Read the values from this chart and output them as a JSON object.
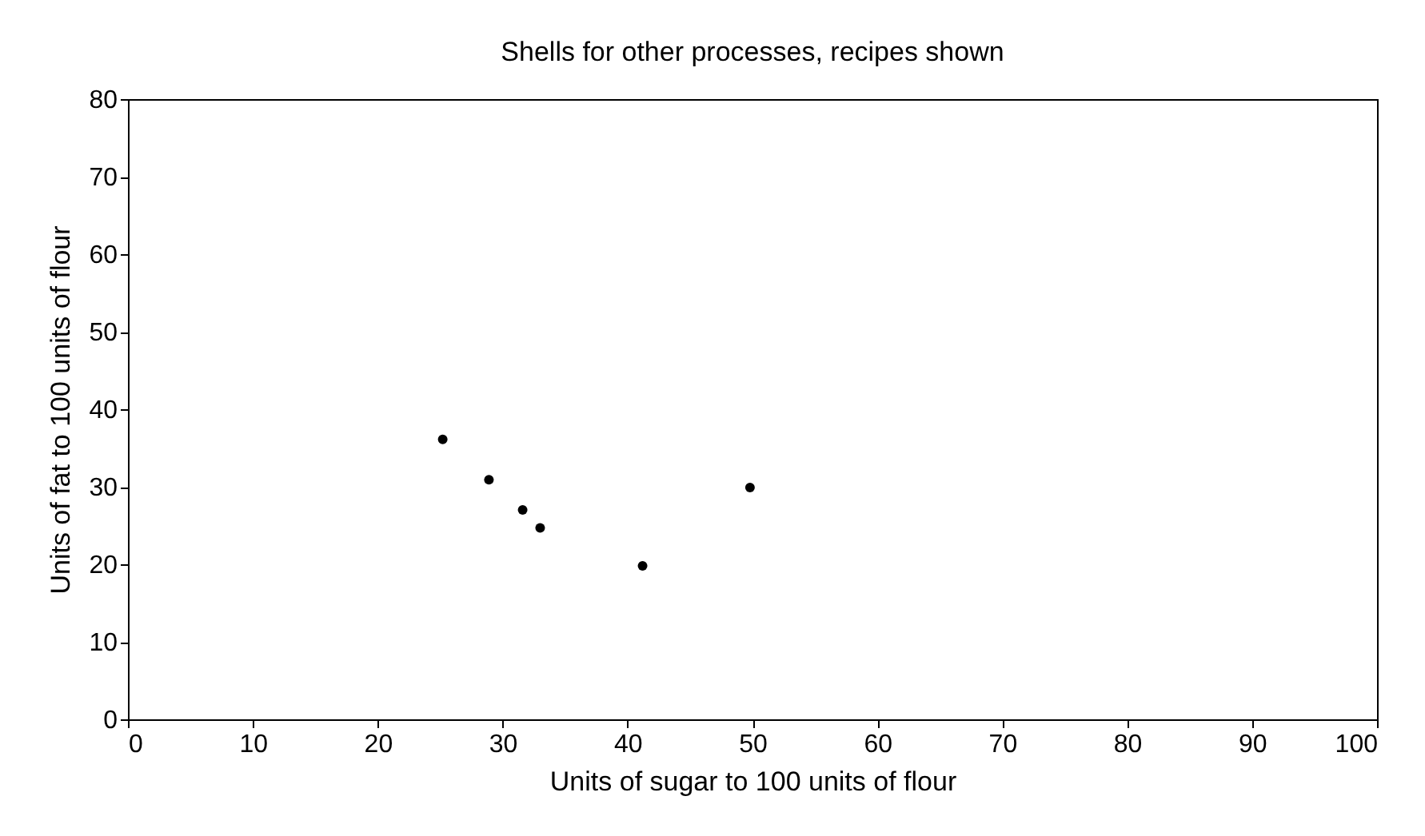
{
  "chart_data": {
    "type": "scatter",
    "title": "Shells for other processes, recipes shown",
    "xlabel": "Units of sugar to 100 units of flour",
    "ylabel": "Units of fat to 100 units of flour",
    "x": [
      25.2,
      28.9,
      31.6,
      33.0,
      41.2,
      49.8
    ],
    "series": [
      {
        "color": "#000000",
        "values": [
          36.1,
          30.9,
          27.0,
          24.7,
          19.8,
          29.9
        ]
      }
    ],
    "xlim": [
      0,
      100
    ],
    "xticks": [
      0,
      10,
      20,
      30,
      40,
      50,
      60,
      70,
      80,
      90,
      100
    ],
    "ylim": [
      0,
      80
    ],
    "yticks": [
      0,
      10,
      20,
      30,
      40,
      50,
      60,
      70,
      80
    ],
    "grid": false
  }
}
